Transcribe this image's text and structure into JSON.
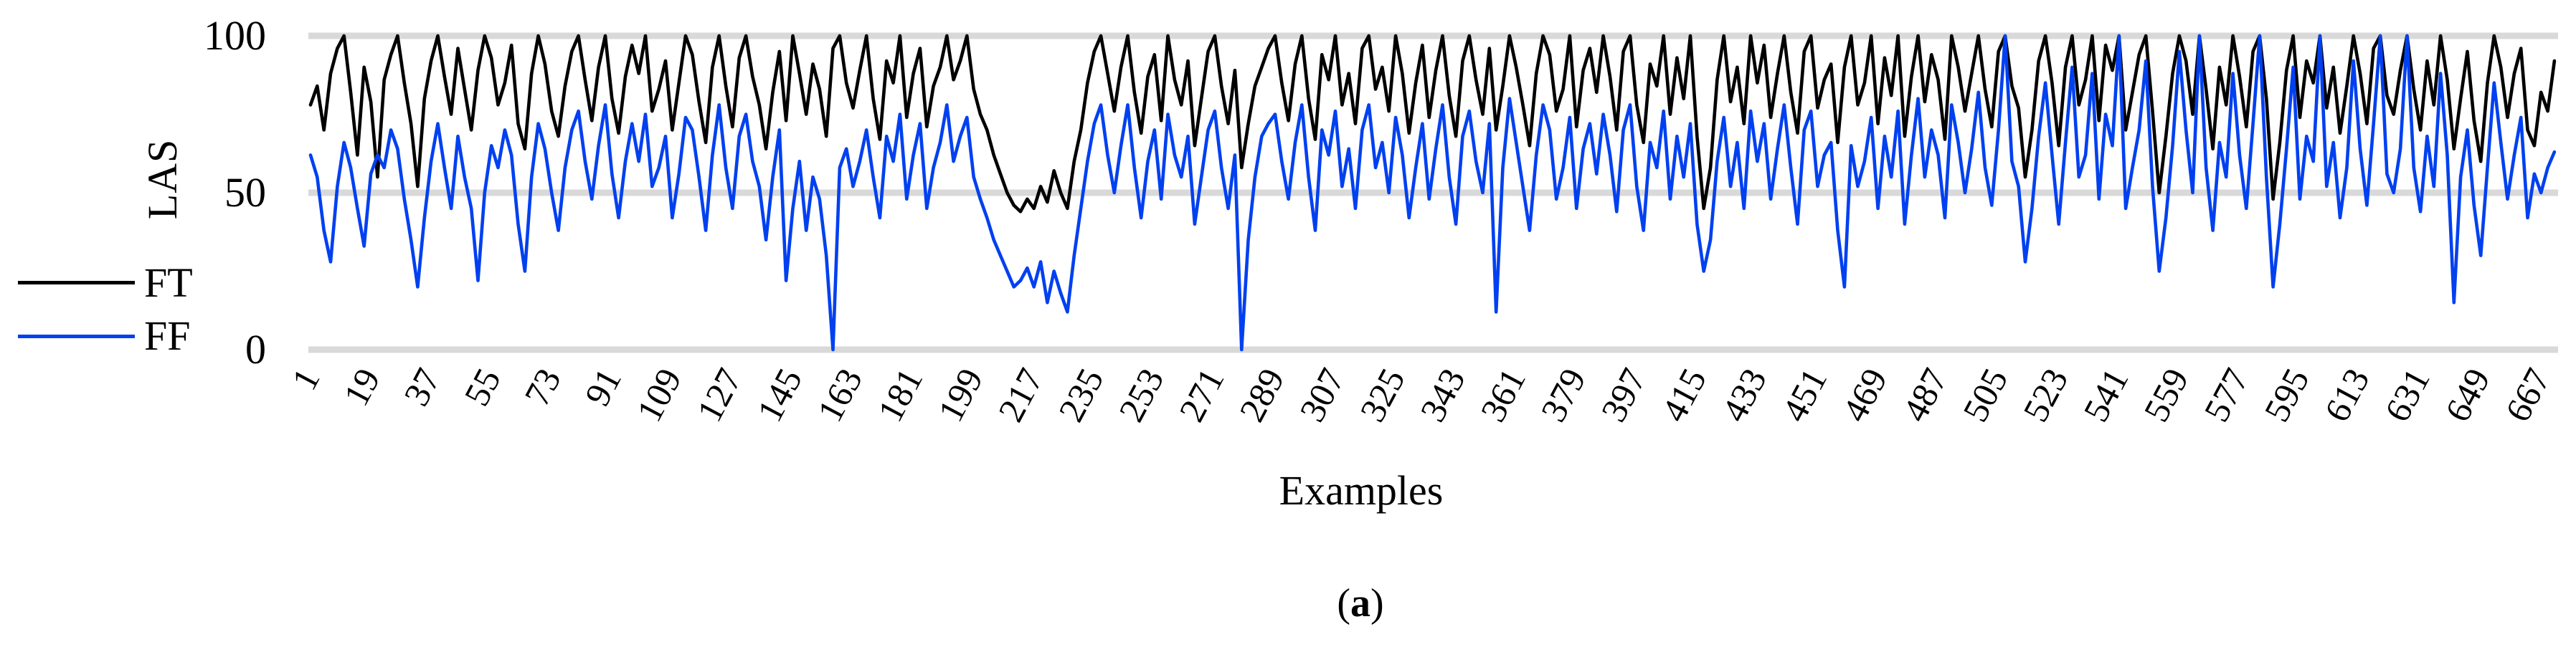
{
  "figure": {
    "caption_open": "(",
    "caption_letter": "a",
    "caption_close": ")"
  },
  "chart_data": {
    "type": "line",
    "title": "",
    "xlabel": "Examples",
    "ylabel": "LAS",
    "ylim": [
      0,
      100
    ],
    "xlim": [
      1,
      671
    ],
    "grid": "horizontal-only",
    "gridline_color": "#d9d9d9",
    "background_color": "#ffffff",
    "legend_position": "left-middle",
    "y_ticks": [
      100,
      50,
      0
    ],
    "x_ticks": [
      1,
      19,
      37,
      55,
      73,
      91,
      109,
      127,
      145,
      163,
      181,
      199,
      217,
      235,
      253,
      271,
      289,
      307,
      325,
      343,
      361,
      379,
      397,
      415,
      433,
      451,
      469,
      487,
      505,
      523,
      541,
      559,
      577,
      595,
      613,
      631,
      649,
      667
    ],
    "x_start": 1,
    "x_step": 2,
    "series": [
      {
        "name": "FT",
        "color": "#000000",
        "values": [
          78,
          84,
          70,
          88,
          96,
          100,
          82,
          62,
          90,
          79,
          55,
          86,
          94,
          100,
          85,
          72,
          52,
          80,
          92,
          100,
          87,
          75,
          96,
          83,
          70,
          89,
          100,
          93,
          78,
          85,
          97,
          72,
          64,
          88,
          100,
          91,
          76,
          68,
          84,
          95,
          100,
          86,
          73,
          90,
          100,
          80,
          69,
          87,
          97,
          88,
          100,
          76,
          83,
          92,
          70,
          85,
          100,
          94,
          79,
          66,
          90,
          100,
          84,
          71,
          93,
          100,
          87,
          78,
          64,
          82,
          95,
          73,
          100,
          88,
          75,
          91,
          83,
          68,
          96,
          100,
          85,
          77,
          89,
          100,
          80,
          67,
          92,
          85,
          100,
          74,
          88,
          96,
          71,
          84,
          90,
          100,
          86,
          92,
          100,
          83,
          75,
          70,
          62,
          56,
          50,
          46,
          44,
          48,
          45,
          52,
          47,
          57,
          50,
          45,
          60,
          70,
          85,
          95,
          100,
          88,
          76,
          90,
          100,
          82,
          69,
          87,
          94,
          73,
          100,
          86,
          78,
          92,
          65,
          80,
          95,
          100,
          84,
          72,
          89,
          58,
          72,
          84,
          90,
          96,
          100,
          85,
          73,
          91,
          100,
          80,
          67,
          94,
          86,
          100,
          78,
          88,
          72,
          96,
          100,
          83,
          90,
          76,
          100,
          88,
          69,
          85,
          97,
          74,
          89,
          100,
          81,
          68,
          92,
          100,
          86,
          75,
          96,
          70,
          84,
          100,
          90,
          78,
          65,
          88,
          100,
          94,
          76,
          83,
          100,
          71,
          89,
          96,
          82,
          100,
          87,
          70,
          95,
          100,
          78,
          66,
          91,
          84,
          100,
          75,
          93,
          80,
          100,
          68,
          45,
          58,
          86,
          100,
          79,
          90,
          72,
          100,
          85,
          97,
          74,
          88,
          100,
          82,
          69,
          95,
          100,
          77,
          86,
          91,
          66,
          90,
          100,
          78,
          85,
          100,
          72,
          93,
          81,
          100,
          68,
          87,
          100,
          79,
          94,
          86,
          67,
          100,
          90,
          76,
          88,
          100,
          83,
          71,
          95,
          100,
          84,
          77,
          55,
          70,
          92,
          100,
          85,
          65,
          90,
          100,
          78,
          86,
          100,
          73,
          97,
          89,
          100,
          70,
          82,
          94,
          100,
          76,
          50,
          68,
          88,
          100,
          92,
          75,
          100,
          83,
          64,
          90,
          78,
          100,
          87,
          71,
          95,
          100,
          80,
          48,
          66,
          89,
          100,
          74,
          92,
          85,
          100,
          77,
          90,
          69,
          84,
          100,
          88,
          72,
          96,
          100,
          81,
          75,
          89,
          100,
          83,
          70,
          92,
          78,
          100,
          86,
          64,
          80,
          95,
          73,
          60,
          85,
          100,
          90,
          74,
          88,
          96,
          70,
          65,
          82,
          76,
          92
        ]
      },
      {
        "name": "FF",
        "color": "#0040f0",
        "values": [
          62,
          55,
          38,
          28,
          52,
          66,
          58,
          45,
          33,
          56,
          62,
          58,
          70,
          64,
          48,
          35,
          20,
          42,
          60,
          72,
          58,
          45,
          68,
          55,
          45,
          22,
          50,
          65,
          58,
          70,
          62,
          40,
          25,
          55,
          72,
          64,
          50,
          38,
          58,
          70,
          76,
          60,
          48,
          65,
          78,
          56,
          42,
          60,
          72,
          60,
          75,
          52,
          58,
          68,
          42,
          56,
          74,
          70,
          55,
          38,
          62,
          78,
          58,
          45,
          68,
          75,
          60,
          52,
          35,
          55,
          70,
          22,
          45,
          60,
          38,
          55,
          48,
          30,
          0,
          58,
          64,
          52,
          60,
          70,
          55,
          42,
          68,
          60,
          75,
          48,
          62,
          72,
          45,
          58,
          66,
          78,
          60,
          68,
          74,
          55,
          48,
          42,
          35,
          30,
          25,
          20,
          22,
          26,
          20,
          28,
          15,
          25,
          18,
          12,
          30,
          45,
          60,
          72,
          78,
          62,
          50,
          65,
          78,
          58,
          42,
          60,
          70,
          48,
          75,
          62,
          55,
          68,
          40,
          55,
          70,
          76,
          58,
          45,
          62,
          0,
          35,
          55,
          68,
          72,
          75,
          60,
          48,
          66,
          78,
          55,
          38,
          70,
          62,
          76,
          52,
          64,
          45,
          70,
          78,
          58,
          66,
          50,
          74,
          62,
          42,
          58,
          72,
          48,
          64,
          78,
          55,
          40,
          68,
          76,
          60,
          50,
          72,
          12,
          58,
          80,
          66,
          52,
          38,
          62,
          78,
          70,
          48,
          58,
          74,
          45,
          64,
          72,
          56,
          75,
          62,
          44,
          70,
          78,
          52,
          38,
          66,
          58,
          76,
          48,
          68,
          55,
          72,
          40,
          25,
          35,
          60,
          74,
          52,
          66,
          45,
          76,
          60,
          72,
          48,
          64,
          78,
          58,
          40,
          70,
          76,
          52,
          62,
          66,
          38,
          20,
          65,
          52,
          60,
          74,
          45,
          68,
          55,
          76,
          40,
          62,
          80,
          55,
          70,
          62,
          42,
          78,
          66,
          50,
          64,
          82,
          58,
          46,
          70,
          100,
          60,
          52,
          28,
          45,
          68,
          85,
          62,
          40,
          66,
          90,
          55,
          62,
          88,
          48,
          75,
          65,
          100,
          45,
          58,
          70,
          92,
          52,
          25,
          42,
          65,
          95,
          70,
          50,
          100,
          58,
          38,
          66,
          55,
          88,
          62,
          45,
          72,
          100,
          55,
          20,
          40,
          64,
          90,
          48,
          68,
          60,
          100,
          52,
          66,
          42,
          58,
          92,
          64,
          46,
          72,
          100,
          56,
          50,
          64,
          100,
          58,
          44,
          68,
          52,
          88,
          62,
          15,
          55,
          70,
          46,
          30,
          58,
          85,
          66,
          48,
          62,
          74,
          42,
          56,
          50,
          58,
          63
        ]
      }
    ]
  }
}
